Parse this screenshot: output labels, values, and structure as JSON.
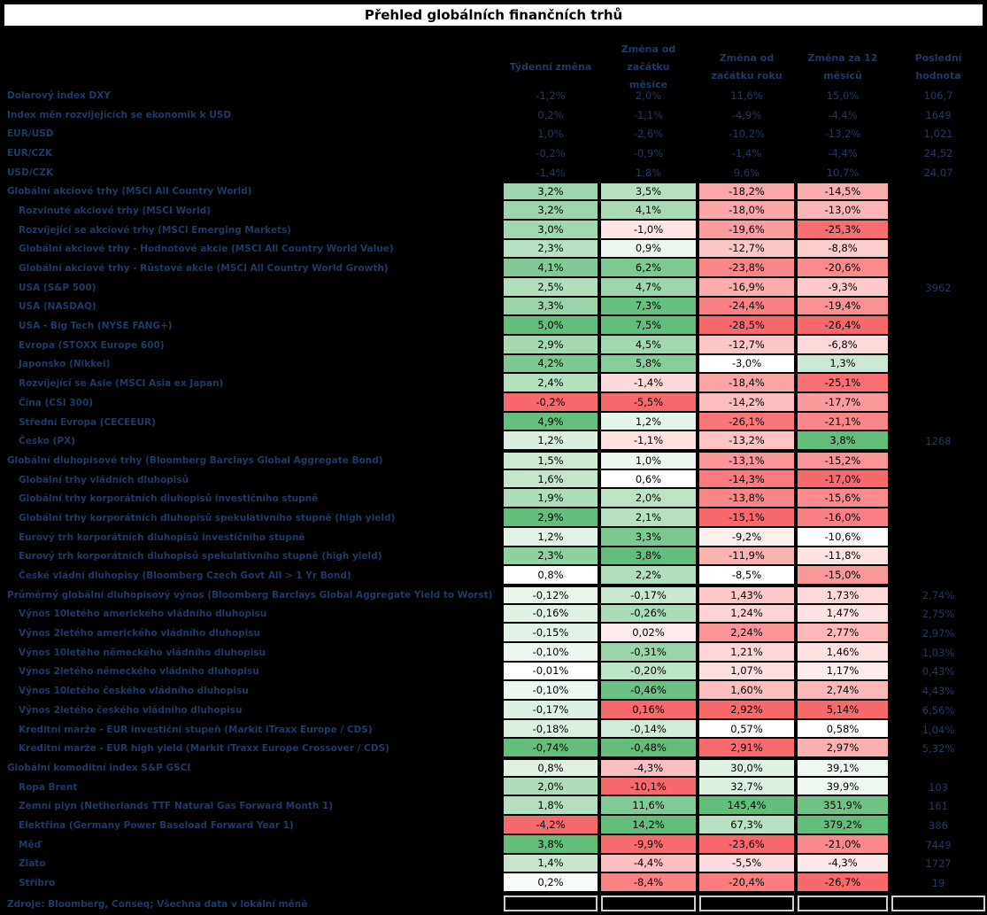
{
  "title": "Přehled globálních finančních trhů",
  "columns": [
    "Týdenní změna",
    "Změna od začátku měsíce",
    "Změna od začátku roku",
    "Změna za 12 měsíců",
    "Poslední hodnota"
  ],
  "footer": "Zdroje: Bloomberg, Conseq; Všechna data v lokální měně",
  "colors": {
    "background": "#000000",
    "label_text": "#203a66",
    "heat_green_full": "#63BE7B",
    "heat_red_full": "#F8696B",
    "heat_neutral": "#FFFFFF",
    "heat_inverted_groups": [
      "yield"
    ]
  },
  "rows": [
    {
      "label": "Dolarový index DXY",
      "indent": false,
      "heat": "none",
      "values": [
        "-1,2%",
        "2,0%",
        "11,6%",
        "15,0%"
      ],
      "last": "106,7"
    },
    {
      "label": "Index měn rozvíjejících se ekonomik k USD",
      "indent": false,
      "heat": "none",
      "values": [
        "0,2%",
        "-1,1%",
        "-4,9%",
        "-4,4%"
      ],
      "last": "1649"
    },
    {
      "label": "EUR/USD",
      "indent": false,
      "heat": "none",
      "values": [
        "1,0%",
        "-2,6%",
        "-10,2%",
        "-13,2%"
      ],
      "last": "1,021"
    },
    {
      "label": "EUR/CZK",
      "indent": false,
      "heat": "none",
      "values": [
        "-0,2%",
        "-0,9%",
        "-1,4%",
        "-4,4%"
      ],
      "last": "24,52"
    },
    {
      "label": "USD/CZK",
      "indent": false,
      "heat": "none",
      "values": [
        "-1,4%",
        "1,8%",
        "9,6%",
        "10,7%"
      ],
      "last": "24,07"
    },
    {
      "label": "Globální akciové trhy (MSCI All Country World)",
      "indent": false,
      "section_start": true,
      "heat": "equity",
      "values": [
        "3,2%",
        "3,5%",
        "-18,2%",
        "-14,5%"
      ],
      "last": ""
    },
    {
      "label": "Rozvinuté akciové trhy (MSCI World)",
      "indent": true,
      "heat": "equity",
      "values": [
        "3,2%",
        "4,1%",
        "-18,0%",
        "-13,0%"
      ],
      "last": ""
    },
    {
      "label": "Rozvíjející se akciové trhy (MSCI Emerging Markets)",
      "indent": true,
      "heat": "equity",
      "values": [
        "3,0%",
        "-1,0%",
        "-19,6%",
        "-25,3%"
      ],
      "last": ""
    },
    {
      "label": "Globální akciové trhy - Hodnotové akcie (MSCI All Country World Value)",
      "indent": true,
      "heat": "equity",
      "values": [
        "2,3%",
        "0,9%",
        "-12,7%",
        "-8,8%"
      ],
      "last": ""
    },
    {
      "label": "Globální akciové trhy - Růstové akcie (MSCI All Country World Growth)",
      "indent": true,
      "heat": "equity",
      "values": [
        "4,1%",
        "6,2%",
        "-23,8%",
        "-20,6%"
      ],
      "last": ""
    },
    {
      "label": "USA (S&P 500)",
      "indent": true,
      "heat": "equity",
      "values": [
        "2,5%",
        "4,7%",
        "-16,9%",
        "-9,3%"
      ],
      "last": "3962"
    },
    {
      "label": "USA (NASDAQ)",
      "indent": true,
      "heat": "equity",
      "values": [
        "3,3%",
        "7,3%",
        "-24,4%",
        "-19,4%"
      ],
      "last": ""
    },
    {
      "label": "USA - Big Tech (NYSE FANG+)",
      "indent": true,
      "heat": "equity",
      "values": [
        "5,0%",
        "7,5%",
        "-28,5%",
        "-26,4%"
      ],
      "last": ""
    },
    {
      "label": "Evropa (STOXX Europe 600)",
      "indent": true,
      "heat": "equity",
      "values": [
        "2,9%",
        "4,5%",
        "-12,7%",
        "-6,8%"
      ],
      "last": ""
    },
    {
      "label": "Japonsko (Nikkei)",
      "indent": true,
      "heat": "equity",
      "values": [
        "4,2%",
        "5,8%",
        "-3,0%",
        "1,3%"
      ],
      "last": ""
    },
    {
      "label": "Rozvíjející se Asie (MSCI Asia ex Japan)",
      "indent": true,
      "heat": "equity",
      "values": [
        "2,4%",
        "-1,4%",
        "-18,4%",
        "-25,1%"
      ],
      "last": ""
    },
    {
      "label": "Čína (CSI 300)",
      "indent": true,
      "heat": "equity",
      "values": [
        "-0,2%",
        "-5,5%",
        "-14,2%",
        "-17,7%"
      ],
      "last": ""
    },
    {
      "label": "Střední Evropa (CECEEUR)",
      "indent": true,
      "heat": "equity",
      "values": [
        "4,9%",
        "1,2%",
        "-26,1%",
        "-21,1%"
      ],
      "last": ""
    },
    {
      "label": "Česko (PX)",
      "indent": true,
      "heat": "equity",
      "values": [
        "1,2%",
        "-1,1%",
        "-13,2%",
        "3,8%"
      ],
      "last": "1268"
    },
    {
      "label": "Globální dluhopisové trhy (Bloomberg Barclays Global Aggregate Bond)",
      "indent": false,
      "section_start": true,
      "heat": "bond",
      "values": [
        "1,5%",
        "1,0%",
        "-13,1%",
        "-15,2%"
      ],
      "last": ""
    },
    {
      "label": "Globální trhy vládních dluhopisů",
      "indent": true,
      "heat": "bond",
      "values": [
        "1,6%",
        "0,6%",
        "-14,3%",
        "-17,0%"
      ],
      "last": ""
    },
    {
      "label": "Globální trhy korporátních dluhopisů investičního stupně",
      "indent": true,
      "heat": "bond",
      "values": [
        "1,9%",
        "2,0%",
        "-13,8%",
        "-15,6%"
      ],
      "last": ""
    },
    {
      "label": "Globální trhy korporátních dluhopisů spekulativního stupně (high yield)",
      "indent": true,
      "heat": "bond",
      "values": [
        "2,9%",
        "2,1%",
        "-15,1%",
        "-16,0%"
      ],
      "last": ""
    },
    {
      "label": "Eurový trh korporátních dluhopisů investičního stupně",
      "indent": true,
      "heat": "bond",
      "values": [
        "1,2%",
        "3,3%",
        "-9,2%",
        "-10,6%"
      ],
      "last": ""
    },
    {
      "label": "Eurový trh korporátních dluhopisů spekulativního stupně (high yield)",
      "indent": true,
      "heat": "bond",
      "values": [
        "2,3%",
        "3,8%",
        "-11,9%",
        "-11,8%"
      ],
      "last": ""
    },
    {
      "label": "České vládní dluhopisy (Bloomberg Czech Govt All > 1 Yr Bond)",
      "indent": true,
      "heat": "bond",
      "values": [
        "0,8%",
        "2,2%",
        "-8,5%",
        "-15,0%"
      ],
      "last": ""
    },
    {
      "label": "Průměrný globální dluhopisový výnos (Bloomberg Barclays Global Aggregate Yield to Worst)",
      "indent": false,
      "section_start": true,
      "heat": "yield",
      "values": [
        "-0,12%",
        "-0,17%",
        "1,43%",
        "1,73%"
      ],
      "last": "2,74%"
    },
    {
      "label": "Výnos 10letého amerického vládního dluhopisu",
      "indent": true,
      "heat": "yield",
      "values": [
        "-0,16%",
        "-0,26%",
        "1,24%",
        "1,47%"
      ],
      "last": "2,75%"
    },
    {
      "label": "Výnos 2letého amerického vládního dluhopisu",
      "indent": true,
      "heat": "yield",
      "values": [
        "-0,15%",
        "0,02%",
        "2,24%",
        "2,77%"
      ],
      "last": "2,97%"
    },
    {
      "label": "Výnos 10letého německého vládního dluhopisu",
      "indent": true,
      "heat": "yield",
      "values": [
        "-0,10%",
        "-0,31%",
        "1,21%",
        "1,46%"
      ],
      "last": "1,03%"
    },
    {
      "label": "Výnos 2letého německého vládního dluhopisu",
      "indent": true,
      "heat": "yield",
      "values": [
        "-0,01%",
        "-0,20%",
        "1,07%",
        "1,17%"
      ],
      "last": "0,43%"
    },
    {
      "label": "Výnos 10letého českého vládního dluhopisu",
      "indent": true,
      "heat": "yield",
      "values": [
        "-0,10%",
        "-0,46%",
        "1,60%",
        "2,74%"
      ],
      "last": "4,43%"
    },
    {
      "label": "Výnos 2letého českého vládního dluhopisu",
      "indent": true,
      "heat": "yield",
      "values": [
        "-0,17%",
        "0,16%",
        "2,92%",
        "5,14%"
      ],
      "last": "6,56%"
    },
    {
      "label": "Kreditní marže - EUR investiční stupeň (Markit iTraxx Europe / CDS)",
      "indent": true,
      "heat": "yield",
      "values": [
        "-0,18%",
        "-0,14%",
        "0,57%",
        "0,58%"
      ],
      "last": "1,04%"
    },
    {
      "label": "Kreditní marže - EUR high yield (Markit iTraxx Europe Crossover / CDS)",
      "indent": true,
      "heat": "yield",
      "values": [
        "-0,74%",
        "-0,48%",
        "2,91%",
        "2,97%"
      ],
      "last": "5,32%"
    },
    {
      "label": "Globální komoditní index S&P GSCI",
      "indent": false,
      "section_start": true,
      "heat": "commodity",
      "values": [
        "0,8%",
        "-4,3%",
        "30,0%",
        "39,1%"
      ],
      "last": ""
    },
    {
      "label": "Ropa Brent",
      "indent": true,
      "heat": "commodity",
      "values": [
        "2,0%",
        "-10,1%",
        "32,7%",
        "39,9%"
      ],
      "last": "103"
    },
    {
      "label": "Zemní plyn (Netherlands TTF Natural Gas Forward Month 1)",
      "indent": true,
      "heat": "commodity",
      "values": [
        "1,8%",
        "11,6%",
        "145,4%",
        "351,9%"
      ],
      "last": "161"
    },
    {
      "label": "Elektřina (Germany Power Baseload Forward Year 1)",
      "indent": true,
      "heat": "commodity",
      "values": [
        "-4,2%",
        "14,2%",
        "67,3%",
        "379,2%"
      ],
      "last": "386"
    },
    {
      "label": "Měď",
      "indent": true,
      "heat": "commodity",
      "values": [
        "3,8%",
        "-9,9%",
        "-23,6%",
        "-21,0%"
      ],
      "last": "7449"
    },
    {
      "label": "Zlato",
      "indent": true,
      "heat": "commodity",
      "values": [
        "1,4%",
        "-4,4%",
        "-5,5%",
        "-4,3%"
      ],
      "last": "1727"
    },
    {
      "label": "Stříbro",
      "indent": true,
      "heat": "commodity",
      "values": [
        "0,2%",
        "-8,4%",
        "-20,4%",
        "-26,7%"
      ],
      "last": "19"
    }
  ]
}
